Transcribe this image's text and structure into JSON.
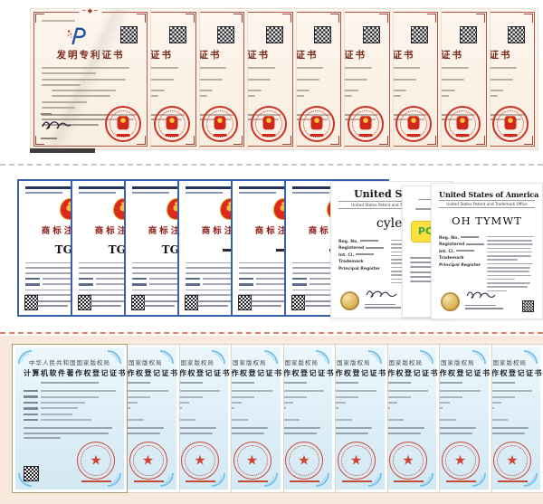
{
  "patents": {
    "count": 9,
    "title": "发明专利证书",
    "issuer_signature": "申长雨",
    "colors": {
      "border": "#b6544a",
      "paper": "#fdf5ec",
      "title": "#7c2a1c",
      "seal": "#cd3227",
      "logo_blue": "#1d4f9e",
      "logo_red": "#d0342a"
    }
  },
  "trademarks": {
    "count": 6,
    "title": "商标注册证",
    "issuer_signature": "申长雨",
    "certs": [
      {
        "mark": "TGW"
      },
      {
        "mark": "TGW"
      },
      {
        "mark": "TGW"
      },
      {
        "mark": ""
      },
      {
        "mark": ""
      },
      {
        "mark": ""
      }
    ],
    "colors": {
      "border": "#3a60ac",
      "title": "#8c1b13",
      "emblem_red": "#dd2a1a",
      "emblem_gold": "#f6c13b"
    }
  },
  "us_trademarks": {
    "cylet": {
      "header": "United States",
      "subheader": "United States Patent and Trademark Office",
      "mark": "cylet",
      "fields": [
        "Reg. No.",
        "Registered",
        "Int. Cl.",
        "Trademark",
        "Principal Register"
      ]
    },
    "pc": {
      "mark": "PC"
    },
    "oh_tymwt": {
      "header": "United States of America",
      "subheader": "United States Patent and Trademark Office",
      "mark": "OH TYMWT",
      "fields": [
        "Reg. No.",
        "Registered",
        "Int. Cl.",
        "Trademark",
        "Principal Register"
      ]
    }
  },
  "copyrights": {
    "count": 9,
    "authority": "中华人民共和国国家版权局",
    "title": "计算机软件著作权登记证书",
    "colors": {
      "paper": "#e3f1f9",
      "floral": "#7bc2ea",
      "seal": "#cf4433",
      "row_bg": "#f9e9dc"
    }
  },
  "dividers": {
    "top_color": "#cbc3ce",
    "bottom_color": "#df8166"
  }
}
